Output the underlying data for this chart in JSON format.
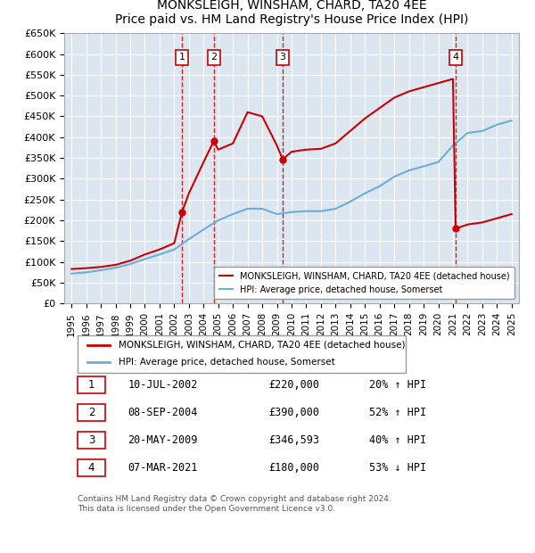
{
  "title": "MONKSLEIGH, WINSHAM, CHARD, TA20 4EE",
  "subtitle": "Price paid vs. HM Land Registry's House Price Index (HPI)",
  "ylabel": "",
  "background_color": "#ffffff",
  "plot_bg_color": "#dce6f1",
  "grid_color": "#ffffff",
  "ylim": [
    0,
    650000
  ],
  "yticks": [
    0,
    50000,
    100000,
    150000,
    200000,
    250000,
    300000,
    350000,
    400000,
    450000,
    500000,
    550000,
    600000,
    650000
  ],
  "xlim_start": 1994.5,
  "xlim_end": 2025.5,
  "xticks": [
    1995,
    1996,
    1997,
    1998,
    1999,
    2000,
    2001,
    2002,
    2003,
    2004,
    2005,
    2006,
    2007,
    2008,
    2009,
    2010,
    2011,
    2012,
    2013,
    2014,
    2015,
    2016,
    2017,
    2018,
    2019,
    2020,
    2021,
    2022,
    2023,
    2024,
    2025
  ],
  "hpi_line_color": "#6baed6",
  "price_line_color": "#cc0000",
  "sale_marker_color": "#cc0000",
  "dashed_line_color": "#cc0000",
  "legend_box_color": "#000000",
  "legend_label1": "MONKSLEIGH, WINSHAM, CHARD, TA20 4EE (detached house)",
  "legend_label2": "HPI: Average price, detached house, Somerset",
  "transactions": [
    {
      "label": "1",
      "year": 2002.53,
      "price": 220000,
      "date": "10-JUL-2002",
      "pct": "20%",
      "dir": "↑"
    },
    {
      "label": "2",
      "year": 2004.69,
      "price": 390000,
      "date": "08-SEP-2004",
      "pct": "52%",
      "dir": "↑"
    },
    {
      "label": "3",
      "year": 2009.39,
      "price": 346593,
      "date": "20-MAY-2009",
      "pct": "40%",
      "dir": "↑"
    },
    {
      "label": "4",
      "year": 2021.18,
      "price": 180000,
      "date": "07-MAR-2021",
      "pct": "53%",
      "dir": "↓"
    }
  ],
  "table_rows": [
    {
      "num": "1",
      "date": "10-JUL-2002",
      "price": "£220,000",
      "pct": "20% ↑ HPI"
    },
    {
      "num": "2",
      "date": "08-SEP-2004",
      "price": "£390,000",
      "pct": "52% ↑ HPI"
    },
    {
      "num": "3",
      "date": "20-MAY-2009",
      "price": "£346,593",
      "pct": "40% ↑ HPI"
    },
    {
      "num": "4",
      "date": "07-MAR-2021",
      "price": "£180,000",
      "pct": "53% ↓ HPI"
    }
  ],
  "footer": "Contains HM Land Registry data © Crown copyright and database right 2024.\nThis data is licensed under the Open Government Licence v3.0.",
  "hpi_years": [
    1995,
    1996,
    1997,
    1998,
    1999,
    2000,
    2001,
    2002,
    2003,
    2004,
    2005,
    2006,
    2007,
    2008,
    2009,
    2010,
    2011,
    2012,
    2013,
    2014,
    2015,
    2016,
    2017,
    2018,
    2019,
    2020,
    2021,
    2022,
    2023,
    2024,
    2025
  ],
  "hpi_values": [
    72000,
    75000,
    80000,
    86000,
    95000,
    107000,
    118000,
    130000,
    155000,
    178000,
    200000,
    215000,
    228000,
    228000,
    215000,
    220000,
    222000,
    222000,
    228000,
    245000,
    265000,
    282000,
    305000,
    320000,
    330000,
    340000,
    380000,
    410000,
    415000,
    430000,
    440000
  ],
  "price_years": [
    1995,
    1996,
    1997,
    1998,
    1999,
    2000,
    2001,
    2002,
    2002.53,
    2003,
    2004,
    2004.69,
    2005,
    2006,
    2007,
    2008,
    2009,
    2009.39,
    2010,
    2011,
    2012,
    2013,
    2014,
    2015,
    2016,
    2017,
    2018,
    2019,
    2020,
    2021,
    2021.18,
    2022,
    2023,
    2024,
    2025
  ],
  "price_values": [
    83000,
    85000,
    88000,
    93000,
    103000,
    118000,
    130000,
    145000,
    220000,
    265000,
    340000,
    390000,
    370000,
    385000,
    460000,
    450000,
    380000,
    346593,
    365000,
    370000,
    372000,
    385000,
    415000,
    445000,
    470000,
    495000,
    510000,
    520000,
    530000,
    540000,
    180000,
    190000,
    195000,
    205000,
    215000
  ]
}
